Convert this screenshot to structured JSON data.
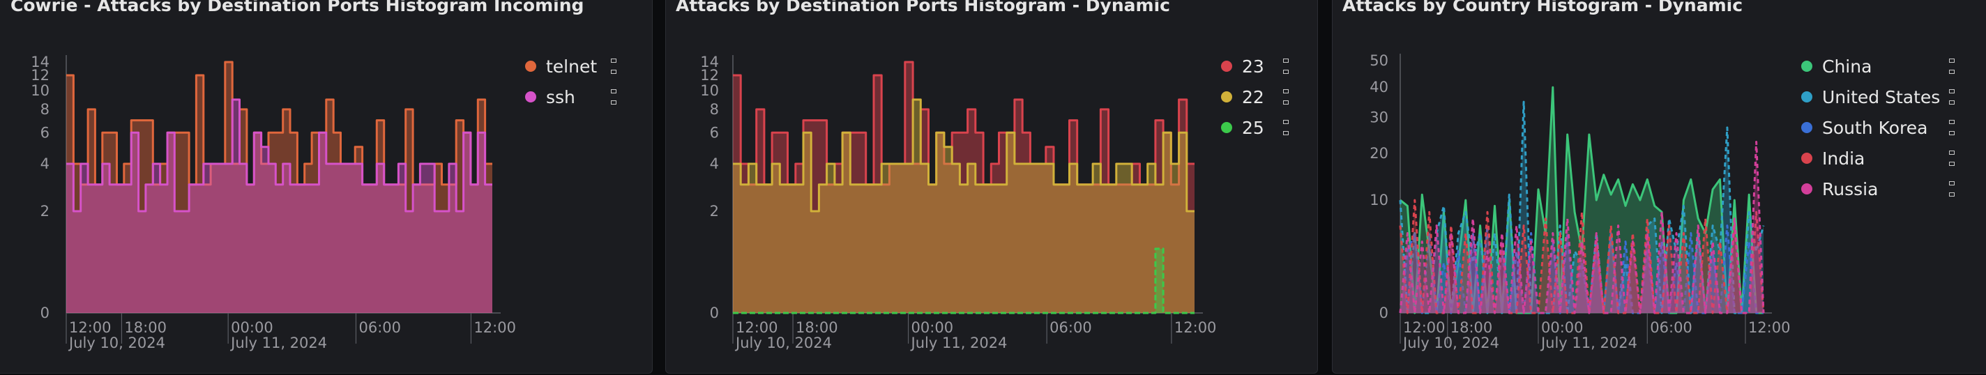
{
  "panels": [
    {
      "title": "Cowrie - Attacks by Destination Ports Histogram Incoming",
      "legend": [
        {
          "label": "telnet",
          "color": "#e0673c"
        },
        {
          "label": "ssh",
          "color": "#d653c9"
        }
      ]
    },
    {
      "title": "Attacks by Destination Ports Histogram - Dynamic",
      "legend": [
        {
          "label": "23",
          "color": "#d9434d"
        },
        {
          "label": "22",
          "color": "#d1b13a"
        },
        {
          "label": "25",
          "color": "#3cc94b"
        }
      ]
    },
    {
      "title": "Attacks by Country Histogram - Dynamic",
      "legend": [
        {
          "label": "China",
          "color": "#3cc67a"
        },
        {
          "label": "United States",
          "color": "#2f9fc7"
        },
        {
          "label": "South Korea",
          "color": "#3a6fd6"
        },
        {
          "label": "India",
          "color": "#d9434d"
        },
        {
          "label": "Russia",
          "color": "#d33f9a"
        }
      ]
    }
  ],
  "chart_data": [
    {
      "type": "area",
      "title": "Cowrie - Attacks by Destination Ports Histogram Incoming",
      "x_ticks": [
        "12:00",
        "18:00",
        "00:00",
        "06:00",
        "12:00"
      ],
      "x_date_labels": [
        "July 10, 2024",
        "July 11, 2024"
      ],
      "y_ticks": [
        0,
        2,
        4,
        6,
        8,
        10,
        12,
        14
      ],
      "y_scale": "symlog",
      "step": true,
      "legend_position": "right",
      "series": [
        {
          "name": "telnet",
          "color": "#e0673c",
          "values": [
            12,
            4,
            3,
            8,
            3,
            6,
            6,
            3,
            4,
            7,
            7,
            7,
            3,
            4,
            6,
            6,
            6,
            3,
            12,
            3,
            4,
            4,
            14,
            4,
            8,
            3,
            6,
            4,
            6,
            6,
            8,
            6,
            3,
            4,
            6,
            6,
            9,
            6,
            4,
            4,
            5,
            3,
            3,
            7,
            3,
            3,
            3,
            8,
            3,
            3,
            3,
            4,
            3,
            3,
            7,
            6,
            3,
            9,
            4
          ]
        },
        {
          "name": "ssh",
          "color": "#d653c9",
          "values": [
            4,
            2,
            4,
            3,
            3,
            4,
            3,
            3,
            3,
            6,
            2,
            3,
            4,
            3,
            6,
            2,
            2,
            3,
            3,
            4,
            4,
            4,
            4,
            9,
            4,
            3,
            6,
            5,
            4,
            3,
            4,
            3,
            3,
            3,
            3,
            6,
            4,
            4,
            4,
            4,
            4,
            3,
            3,
            4,
            3,
            3,
            4,
            2,
            3,
            4,
            4,
            2,
            2,
            4,
            2,
            6,
            3,
            6,
            3
          ]
        }
      ]
    },
    {
      "type": "area",
      "title": "Attacks by Destination Ports Histogram - Dynamic",
      "x_ticks": [
        "12:00",
        "18:00",
        "00:00",
        "06:00",
        "12:00"
      ],
      "x_date_labels": [
        "July 10, 2024",
        "July 11, 2024"
      ],
      "y_ticks": [
        0,
        2,
        4,
        6,
        8,
        10,
        12,
        14
      ],
      "y_scale": "symlog",
      "step": true,
      "legend_position": "right",
      "series": [
        {
          "name": "23",
          "color": "#d9434d",
          "values": [
            12,
            4,
            3,
            8,
            3,
            6,
            6,
            3,
            4,
            7,
            7,
            7,
            3,
            4,
            6,
            6,
            6,
            3,
            12,
            3,
            4,
            4,
            14,
            4,
            8,
            3,
            6,
            4,
            6,
            6,
            8,
            6,
            3,
            4,
            6,
            6,
            9,
            6,
            4,
            4,
            5,
            3,
            3,
            7,
            3,
            3,
            3,
            8,
            3,
            3,
            3,
            4,
            3,
            3,
            7,
            6,
            3,
            9,
            4
          ]
        },
        {
          "name": "22",
          "color": "#d1b13a",
          "values": [
            4,
            3,
            4,
            3,
            3,
            4,
            3,
            3,
            3,
            6,
            2,
            3,
            4,
            3,
            6,
            3,
            3,
            3,
            3,
            4,
            4,
            4,
            4,
            9,
            4,
            3,
            6,
            5,
            4,
            3,
            4,
            3,
            3,
            3,
            3,
            6,
            4,
            4,
            4,
            4,
            4,
            3,
            3,
            4,
            3,
            3,
            4,
            3,
            3,
            4,
            4,
            3,
            3,
            4,
            3,
            6,
            4,
            6,
            2
          ]
        },
        {
          "name": "25",
          "color": "#3cc94b",
          "values": [
            0,
            0,
            0,
            0,
            0,
            0,
            0,
            0,
            0,
            0,
            0,
            0,
            0,
            0,
            0,
            0,
            0,
            0,
            0,
            0,
            0,
            0,
            0,
            0,
            0,
            0,
            0,
            0,
            0,
            0,
            0,
            0,
            0,
            0,
            0,
            0,
            0,
            0,
            0,
            0,
            0,
            0,
            0,
            0,
            0,
            0,
            0,
            0,
            0,
            0,
            0,
            0,
            0,
            0,
            1,
            0,
            0,
            0,
            0
          ]
        }
      ]
    },
    {
      "type": "line",
      "title": "Attacks by Country Histogram - Dynamic",
      "x_ticks": [
        "12:00",
        "18:00",
        "00:00",
        "06:00",
        "12:00"
      ],
      "x_date_labels": [
        "July 10, 2024",
        "July 11, 2024"
      ],
      "y_ticks": [
        0,
        10,
        20,
        30,
        40,
        50
      ],
      "y_scale": "sqrt",
      "legend_position": "right",
      "series": [
        {
          "name": "China",
          "color": "#3cc67a",
          "values": [
            10,
            9,
            0,
            11,
            3,
            0,
            8,
            0,
            2,
            10,
            0,
            6,
            0,
            9,
            0,
            10,
            0,
            0,
            0,
            12,
            5,
            40,
            0,
            25,
            8,
            3,
            25,
            10,
            15,
            11,
            14,
            9,
            13,
            10,
            14,
            9,
            8,
            0,
            0,
            10,
            14,
            7,
            5,
            12,
            14,
            0,
            10,
            0,
            11,
            0,
            0
          ]
        },
        {
          "name": "United States",
          "color": "#2f9fc7",
          "values": [
            10,
            0,
            5,
            0,
            0,
            5,
            9,
            0,
            5,
            8,
            2,
            5,
            0,
            5,
            0,
            11,
            0,
            35,
            0,
            0,
            0,
            0,
            6,
            0,
            3,
            2,
            0,
            5,
            0,
            5,
            0,
            2,
            0,
            0,
            6,
            7,
            0,
            7,
            3,
            9,
            0,
            5,
            0,
            6,
            3,
            27,
            0,
            0,
            8,
            3,
            6
          ]
        },
        {
          "name": "South Korea",
          "color": "#3a6fd6",
          "values": [
            0,
            3,
            5,
            0,
            5,
            0,
            2,
            0,
            3,
            0,
            5,
            0,
            6,
            0,
            3,
            0,
            3,
            0,
            5,
            0,
            0,
            4,
            0,
            5,
            0,
            2,
            0,
            3,
            0,
            5,
            0,
            4,
            0,
            0,
            3,
            0,
            4,
            0,
            2,
            0,
            5,
            0,
            0,
            3,
            0,
            6,
            0,
            0,
            4,
            0,
            0
          ]
        },
        {
          "name": "India",
          "color": "#d9434d",
          "values": [
            6,
            0,
            10,
            0,
            8,
            0,
            0,
            6,
            0,
            5,
            0,
            0,
            8,
            0,
            4,
            0,
            0,
            6,
            0,
            0,
            7,
            0,
            5,
            0,
            0,
            8,
            0,
            4,
            0,
            6,
            0,
            0,
            5,
            0,
            7,
            0,
            0,
            6,
            0,
            5,
            0,
            0,
            7,
            0,
            4,
            0,
            6,
            0,
            0,
            8,
            0
          ]
        },
        {
          "name": "Russia",
          "color": "#d33f9a",
          "values": [
            0,
            5,
            0,
            4,
            0,
            6,
            0,
            5,
            0,
            0,
            7,
            0,
            3,
            0,
            5,
            0,
            6,
            0,
            4,
            0,
            0,
            5,
            0,
            7,
            0,
            4,
            0,
            5,
            0,
            0,
            6,
            0,
            4,
            0,
            5,
            0,
            8,
            0,
            5,
            0,
            0,
            6,
            0,
            4,
            0,
            0,
            7,
            0,
            0,
            23,
            0
          ]
        }
      ]
    }
  ]
}
